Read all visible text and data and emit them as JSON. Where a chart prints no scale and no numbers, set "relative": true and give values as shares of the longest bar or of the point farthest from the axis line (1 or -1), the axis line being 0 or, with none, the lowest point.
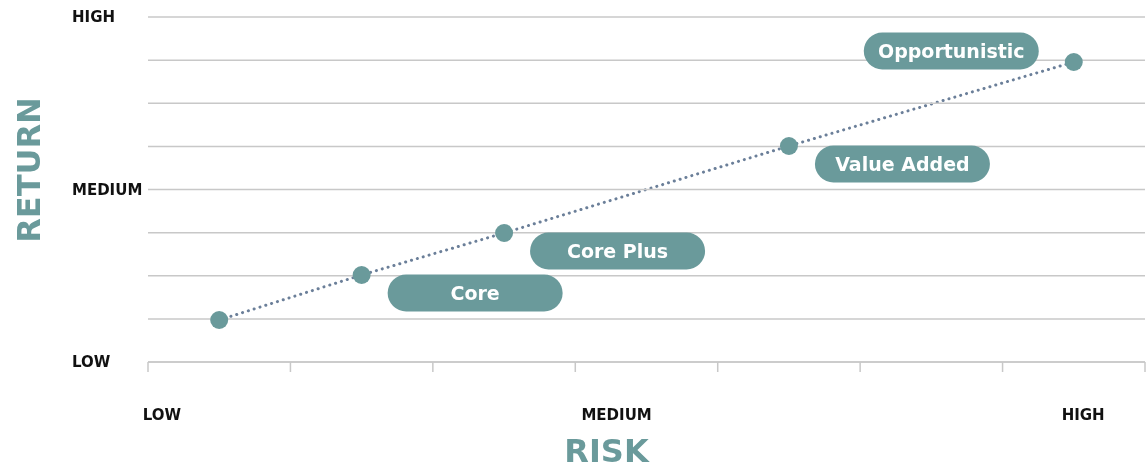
{
  "chart_data": {
    "type": "line",
    "relative": true,
    "xlabel": "RISK",
    "ylabel": "RETURN",
    "categories": [
      null,
      null,
      null,
      null,
      null,
      null,
      null
    ],
    "grid": "y",
    "series": [
      {
        "color": "#6b7f99",
        "colors": [
          "#6a9a9b",
          "#6a9a9b",
          "#6a9a9b",
          null,
          "#6a9a9b",
          null,
          "#6a9a9b"
        ],
        "values": [
          0.14,
          0.29,
          0.43,
          null,
          0.72,
          null,
          1
        ],
        "marker": "circle",
        "line_style": "dotted"
      }
    ],
    "annotations": [
      "LOW",
      "MEDIUM",
      "HIGH",
      "LOW",
      "MEDIUM",
      "HIGH",
      "Core",
      "Core Plus",
      "Value Added",
      "Opportunistic"
    ]
  }
}
